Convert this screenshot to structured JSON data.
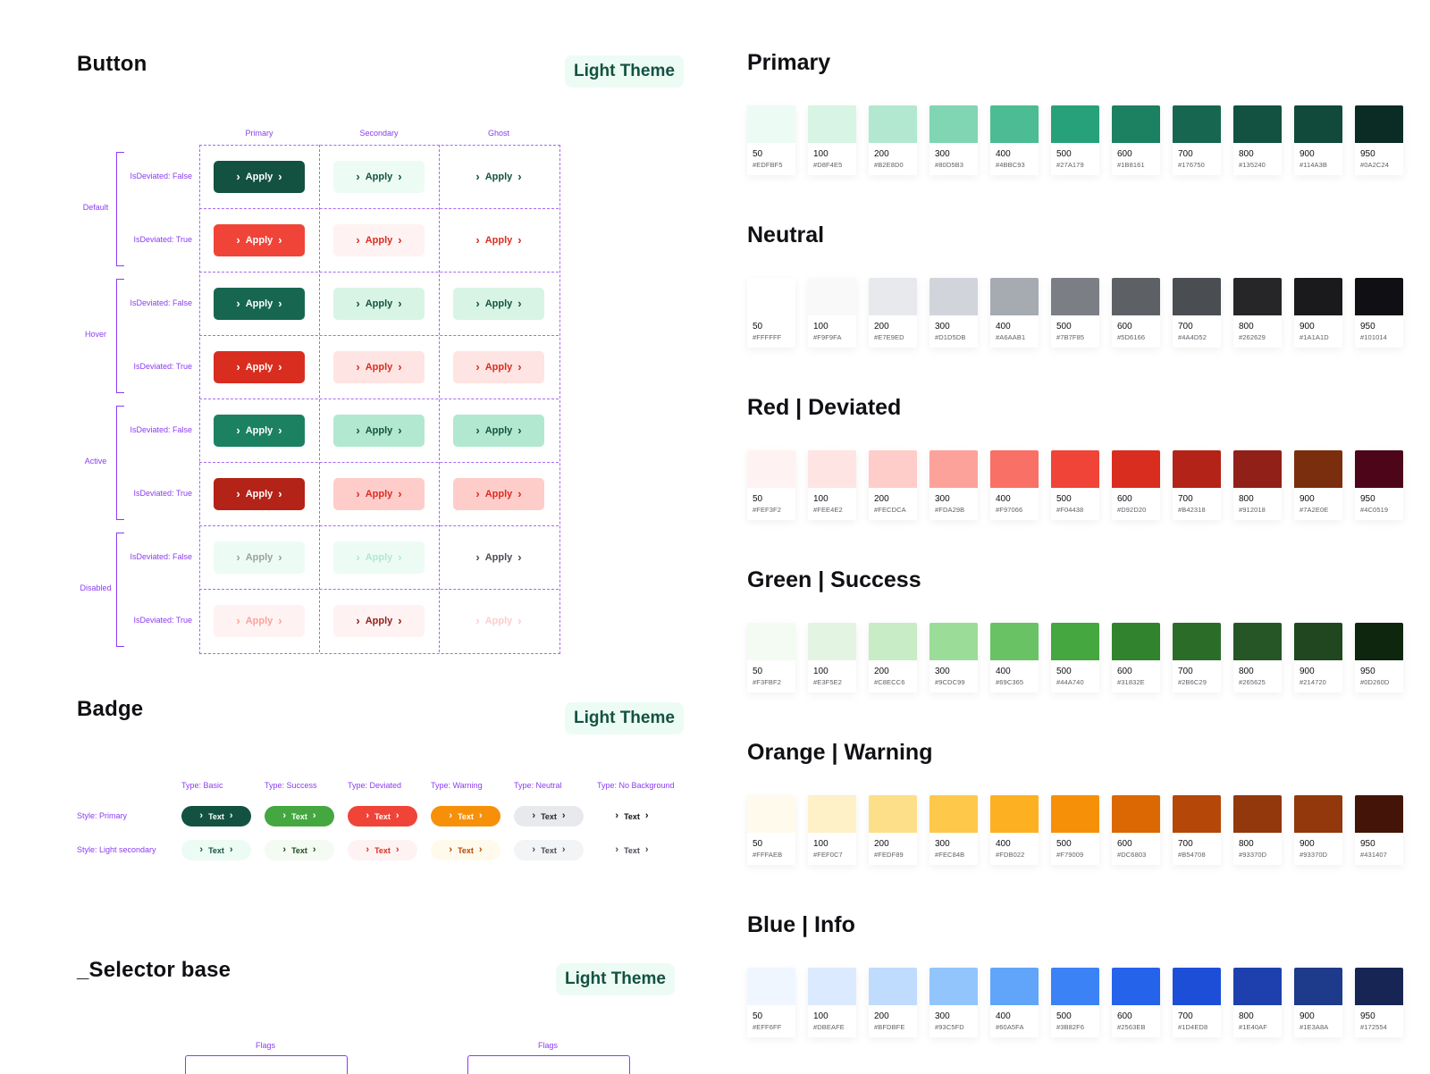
{
  "button_section": {
    "title": "Button",
    "theme_tag": "Light Theme",
    "columns": [
      "Primary",
      "Secondary",
      "Ghost"
    ],
    "groups": [
      "Default",
      "Hover",
      "Active",
      "Disabled"
    ],
    "row_labels": [
      "IsDeviated: False",
      "IsDeviated: True",
      "IsDeviated: False",
      "IsDeviated: True",
      "IsDeviated: False",
      "IsDeviated: True",
      "IsDeviated: False",
      "IsDeviated: True"
    ],
    "button_label": "Apply",
    "rows": [
      [
        {
          "bg": "#135240",
          "fg": "#FFFFFF"
        },
        {
          "bg": "#EDFBF5",
          "fg": "#135240"
        },
        {
          "bg": "#FFFFFF",
          "fg": "#135240"
        }
      ],
      [
        {
          "bg": "#F04438",
          "fg": "#FFFFFF"
        },
        {
          "bg": "#FEF3F2",
          "fg": "#D92D20"
        },
        {
          "bg": "#FFFFFF",
          "fg": "#D92D20"
        }
      ],
      [
        {
          "bg": "#176750",
          "fg": "#FFFFFF"
        },
        {
          "bg": "#D8F4E5",
          "fg": "#135240"
        },
        {
          "bg": "#D8F4E5",
          "fg": "#135240"
        }
      ],
      [
        {
          "bg": "#D92D20",
          "fg": "#FFFFFF"
        },
        {
          "bg": "#FEE4E2",
          "fg": "#D92D20"
        },
        {
          "bg": "#FEE4E2",
          "fg": "#D92D20"
        }
      ],
      [
        {
          "bg": "#1B8161",
          "fg": "#FFFFFF"
        },
        {
          "bg": "#B2E8D0",
          "fg": "#135240"
        },
        {
          "bg": "#B2E8D0",
          "fg": "#135240"
        }
      ],
      [
        {
          "bg": "#B42318",
          "fg": "#FFFFFF"
        },
        {
          "bg": "#FECDCA",
          "fg": "#D92D20"
        },
        {
          "bg": "#FECDCA",
          "fg": "#D92D20"
        }
      ],
      [
        {
          "bg": "#EDFBF5",
          "fg": "#9AA09D"
        },
        {
          "bg": "#EDFBF5",
          "fg": "#B2E8D0"
        },
        {
          "bg": "#FFFFFF",
          "fg": "#4A4D52"
        }
      ],
      [
        {
          "bg": "#FEF3F2",
          "fg": "#FDA29B"
        },
        {
          "bg": "#FEF3F2",
          "fg": "#912018"
        },
        {
          "bg": "#FFFFFF",
          "fg": "#FECDCA"
        }
      ]
    ]
  },
  "badge_section": {
    "title": "Badge",
    "theme_tag": "Light Theme",
    "types": [
      "Type: Basic",
      "Type: Success",
      "Type: Deviated",
      "Type: Warning",
      "Type: Neutral",
      "Type: No Background"
    ],
    "styles": [
      "Style: Primary",
      "Style: Light secondary"
    ],
    "badge_label": "Text",
    "rows": [
      [
        {
          "bg": "#135240",
          "fg": "#FFFFFF"
        },
        {
          "bg": "#44A740",
          "fg": "#FFFFFF"
        },
        {
          "bg": "#F04438",
          "fg": "#FFFFFF"
        },
        {
          "bg": "#F79009",
          "fg": "#FFFFFF"
        },
        {
          "bg": "#E7E9ED",
          "fg": "#262629"
        },
        {
          "bg": "#FFFFFF",
          "fg": "#101014"
        }
      ],
      [
        {
          "bg": "#EDFBF5",
          "fg": "#135240"
        },
        {
          "bg": "#F3FBF2",
          "fg": "#214720"
        },
        {
          "bg": "#FEF3F2",
          "fg": "#D92D20"
        },
        {
          "bg": "#FFFAEB",
          "fg": "#B54708"
        },
        {
          "bg": "#F3F4F6",
          "fg": "#4A4D52"
        },
        {
          "bg": "#FFFFFF",
          "fg": "#4A4D52"
        }
      ]
    ]
  },
  "selector_section": {
    "title": "_Selector base",
    "theme_tag": "Light Theme",
    "flags": [
      "Flags",
      "Flags"
    ]
  },
  "palettes": [
    {
      "title": "Primary",
      "swatches": [
        [
          "50",
          "#EDFBF5"
        ],
        [
          "100",
          "#D8F4E5"
        ],
        [
          "200",
          "#B2E8D0"
        ],
        [
          "300",
          "#80D5B3"
        ],
        [
          "400",
          "#4BBC93"
        ],
        [
          "500",
          "#27A179"
        ],
        [
          "600",
          "#1B8161"
        ],
        [
          "700",
          "#176750"
        ],
        [
          "800",
          "#135240"
        ],
        [
          "900",
          "#114A3B"
        ],
        [
          "950",
          "#0A2C24"
        ]
      ]
    },
    {
      "title": "Neutral",
      "swatches": [
        [
          "50",
          "#FFFFFF"
        ],
        [
          "100",
          "#F9F9FA"
        ],
        [
          "200",
          "#E7E9ED"
        ],
        [
          "300",
          "#D1D5DB"
        ],
        [
          "400",
          "#A6AAB1"
        ],
        [
          "500",
          "#7B7F85"
        ],
        [
          "600",
          "#5D6166"
        ],
        [
          "700",
          "#4A4D52"
        ],
        [
          "800",
          "#262629"
        ],
        [
          "900",
          "#1A1A1D"
        ],
        [
          "950",
          "#101014"
        ]
      ]
    },
    {
      "title": "Red | Deviated",
      "swatches": [
        [
          "50",
          "#FEF3F2"
        ],
        [
          "100",
          "#FEE4E2"
        ],
        [
          "200",
          "#FECDCA"
        ],
        [
          "300",
          "#FDA29B"
        ],
        [
          "400",
          "#F97066"
        ],
        [
          "500",
          "#F04438"
        ],
        [
          "600",
          "#D92D20"
        ],
        [
          "700",
          "#B42318"
        ],
        [
          "800",
          "#912018"
        ],
        [
          "900",
          "#7A2E0E"
        ],
        [
          "950",
          "#4C0519"
        ]
      ]
    },
    {
      "title": "Green | Success",
      "swatches": [
        [
          "50",
          "#F3FBF2"
        ],
        [
          "100",
          "#E3F5E2"
        ],
        [
          "200",
          "#C8ECC6"
        ],
        [
          "300",
          "#9CDC99"
        ],
        [
          "400",
          "#69C365"
        ],
        [
          "500",
          "#44A740"
        ],
        [
          "600",
          "#31832E"
        ],
        [
          "700",
          "#2B6C29"
        ],
        [
          "800",
          "#265625"
        ],
        [
          "900",
          "#214720"
        ],
        [
          "950",
          "#0D260D"
        ]
      ]
    },
    {
      "title": "Orange | Warning",
      "swatches": [
        [
          "50",
          "#FFFAEB"
        ],
        [
          "100",
          "#FEF0C7"
        ],
        [
          "200",
          "#FEDF89"
        ],
        [
          "300",
          "#FEC84B"
        ],
        [
          "400",
          "#FDB022"
        ],
        [
          "500",
          "#F79009"
        ],
        [
          "600",
          "#DC6803"
        ],
        [
          "700",
          "#B54708"
        ],
        [
          "800",
          "#93370D"
        ],
        [
          "900",
          "#93370D"
        ],
        [
          "950",
          "#431407"
        ]
      ]
    },
    {
      "title": "Blue | Info",
      "swatches": [
        [
          "50",
          "#EFF6FF"
        ],
        [
          "100",
          "#DBEAFE"
        ],
        [
          "200",
          "#BFDBFE"
        ],
        [
          "300",
          "#93C5FD"
        ],
        [
          "400",
          "#60A5FA"
        ],
        [
          "500",
          "#3B82F6"
        ],
        [
          "600",
          "#2563EB"
        ],
        [
          "700",
          "#1D4ED8"
        ],
        [
          "800",
          "#1E40AF"
        ],
        [
          "900",
          "#1E3A8A"
        ],
        [
          "950",
          "#172554"
        ]
      ]
    }
  ]
}
